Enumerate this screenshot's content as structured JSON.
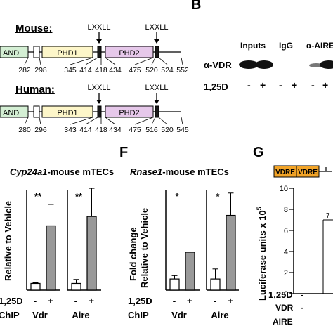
{
  "panelA": {
    "mouse_label": "Mouse:",
    "human_label": "Human:",
    "lxxll_label": "LXXLL",
    "and_label": "AND",
    "phd1_label": "PHD1",
    "phd2_label": "PHD2",
    "mouse_numbers": [
      "282",
      "298",
      "345",
      "414",
      "418",
      "434",
      "475",
      "520",
      "524",
      "552"
    ],
    "human_numbers": [
      "280",
      "296",
      "343",
      "414",
      "418",
      "434",
      "475",
      "516",
      "520",
      "545"
    ],
    "colors": {
      "and": "#d4efd4",
      "phd1": "#fdf6c9",
      "phd2": "#e6c8ea",
      "lxxll": "#1a1a1a"
    }
  },
  "panelB": {
    "letter": "B",
    "col_inputs": "Inputs",
    "col_igg": "IgG",
    "col_aire": "α-AIRE",
    "row_label": "α-VDR",
    "treat_label": "1,25D",
    "signs": [
      "-",
      "+",
      "-",
      "+",
      "-",
      "+"
    ]
  },
  "panelE": {
    "title_italic": "Cyp24a1",
    "title_rest": "-mouse mTECs",
    "ylabel": "Relative to Vehicle",
    "sig": [
      "**",
      "**"
    ],
    "treat_label": "1,25D",
    "chip_label": "ChIP",
    "groups": [
      "Vdr",
      "Aire"
    ],
    "signs": [
      "-",
      "+",
      "-",
      "+"
    ]
  },
  "panelF": {
    "letter": "F",
    "title_italic": "Rnase1",
    "title_rest": "-mouse mTECs",
    "ylabel_line1": "Fold change",
    "ylabel_line2": "Relative to Vehicle",
    "sig": [
      "*",
      "*"
    ],
    "treat_label": "1,25D",
    "chip_label": "ChIP",
    "groups": [
      "Vdr",
      "Aire"
    ],
    "signs": [
      "-",
      "+",
      "-",
      "+"
    ]
  },
  "panelG": {
    "letter": "G",
    "vdre1": "VDRE",
    "vdre2": "VDRE",
    "ylabel": "Luciferase units x 10",
    "ylabel_exp": "5",
    "yticks": [
      "10",
      "8",
      "6",
      "4",
      "2",
      "0"
    ],
    "tick7": "7",
    "treat_label": "1,25D",
    "vdr_label": "VDR",
    "aire_label": "AIRE",
    "signs": [
      "-",
      "-"
    ],
    "vdre_color": "#f2a428"
  },
  "chart_data": [
    {
      "type": "bar",
      "title": "Cyp24a1-mouse mTECs",
      "ylabel": "Relative to Vehicle",
      "categories": [
        "Vdr -",
        "Vdr +",
        "Aire -",
        "Aire +"
      ],
      "series": [
        {
          "values": [
            1.0,
            9.6,
            1.0,
            11.0
          ]
        }
      ],
      "errors": [
        0.1,
        3.2,
        0.6,
        4.2
      ],
      "ylim": [
        0,
        15
      ]
    },
    {
      "type": "bar",
      "title": "Rnase1-mouse mTECs",
      "ylabel": "Fold change Relative to Vehicle",
      "categories": [
        "Vdr -",
        "Vdr +",
        "Aire -",
        "Aire +"
      ],
      "series": [
        {
          "values": [
            1.0,
            3.4,
            1.0,
            6.7
          ]
        }
      ],
      "errors": [
        0.3,
        1.1,
        0.9,
        2.0
      ],
      "ylim": [
        0,
        9
      ]
    }
  ]
}
